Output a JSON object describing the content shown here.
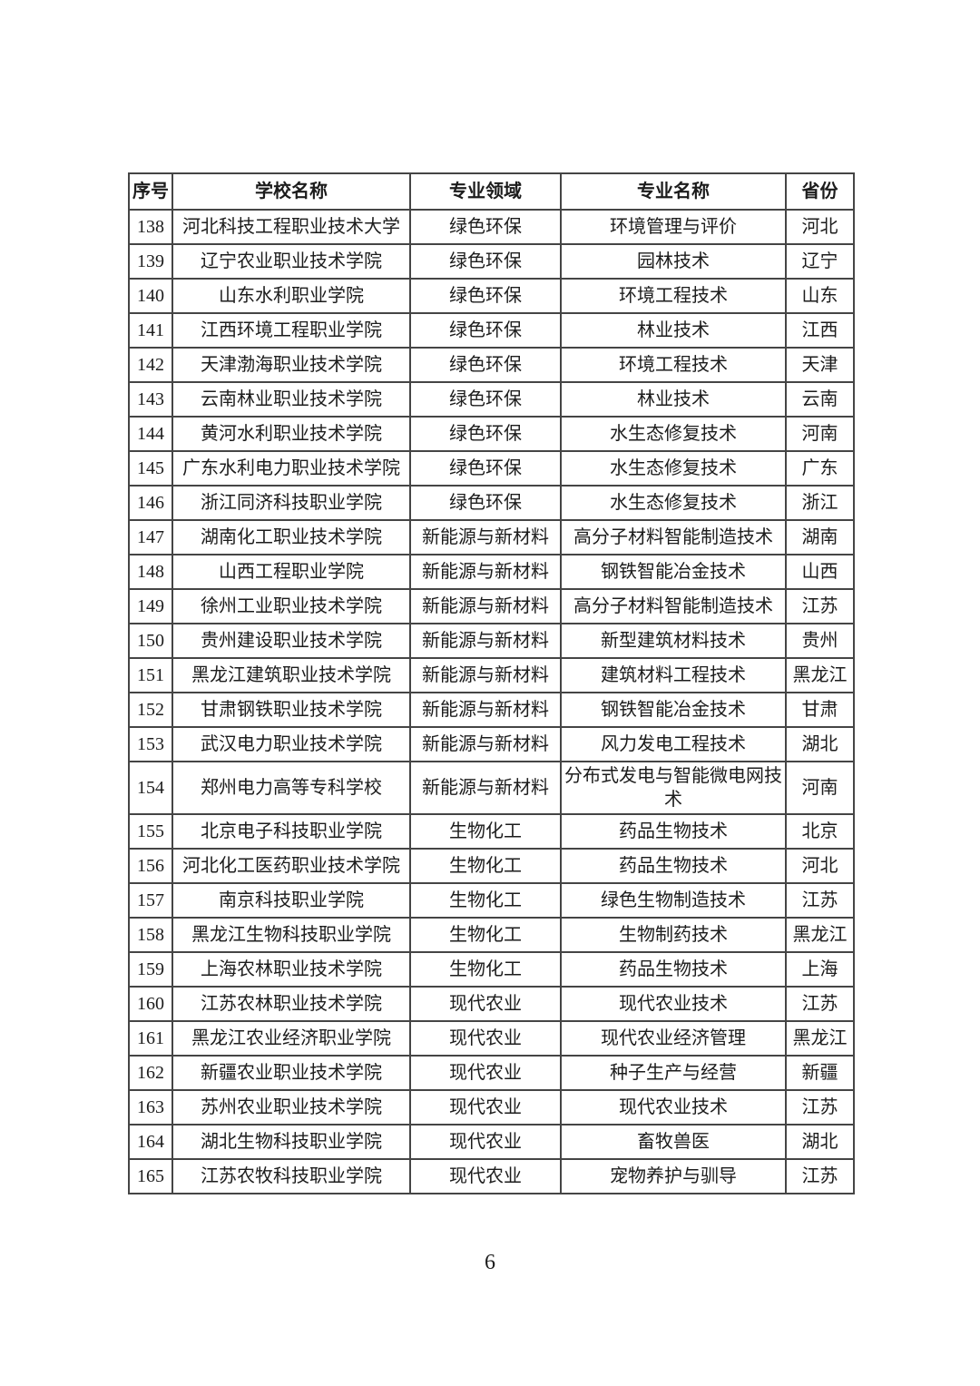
{
  "page": {
    "number": "6"
  },
  "table": {
    "headers": [
      "序号",
      "学校名称",
      "专业领域",
      "专业名称",
      "省份"
    ],
    "rows": [
      [
        "138",
        "河北科技工程职业技术大学",
        "绿色环保",
        "环境管理与评价",
        "河北"
      ],
      [
        "139",
        "辽宁农业职业技术学院",
        "绿色环保",
        "园林技术",
        "辽宁"
      ],
      [
        "140",
        "山东水利职业学院",
        "绿色环保",
        "环境工程技术",
        "山东"
      ],
      [
        "141",
        "江西环境工程职业学院",
        "绿色环保",
        "林业技术",
        "江西"
      ],
      [
        "142",
        "天津渤海职业技术学院",
        "绿色环保",
        "环境工程技术",
        "天津"
      ],
      [
        "143",
        "云南林业职业技术学院",
        "绿色环保",
        "林业技术",
        "云南"
      ],
      [
        "144",
        "黄河水利职业技术学院",
        "绿色环保",
        "水生态修复技术",
        "河南"
      ],
      [
        "145",
        "广东水利电力职业技术学院",
        "绿色环保",
        "水生态修复技术",
        "广东"
      ],
      [
        "146",
        "浙江同济科技职业学院",
        "绿色环保",
        "水生态修复技术",
        "浙江"
      ],
      [
        "147",
        "湖南化工职业技术学院",
        "新能源与新材料",
        "高分子材料智能制造技术",
        "湖南"
      ],
      [
        "148",
        "山西工程职业学院",
        "新能源与新材料",
        "钢铁智能冶金技术",
        "山西"
      ],
      [
        "149",
        "徐州工业职业技术学院",
        "新能源与新材料",
        "高分子材料智能制造技术",
        "江苏"
      ],
      [
        "150",
        "贵州建设职业技术学院",
        "新能源与新材料",
        "新型建筑材料技术",
        "贵州"
      ],
      [
        "151",
        "黑龙江建筑职业技术学院",
        "新能源与新材料",
        "建筑材料工程技术",
        "黑龙江"
      ],
      [
        "152",
        "甘肃钢铁职业技术学院",
        "新能源与新材料",
        "钢铁智能冶金技术",
        "甘肃"
      ],
      [
        "153",
        "武汉电力职业技术学院",
        "新能源与新材料",
        "风力发电工程技术",
        "湖北"
      ],
      [
        "154",
        "郑州电力高等专科学校",
        "新能源与新材料",
        "分布式发电与智能微电网技术",
        "河南"
      ],
      [
        "155",
        "北京电子科技职业学院",
        "生物化工",
        "药品生物技术",
        "北京"
      ],
      [
        "156",
        "河北化工医药职业技术学院",
        "生物化工",
        "药品生物技术",
        "河北"
      ],
      [
        "157",
        "南京科技职业学院",
        "生物化工",
        "绿色生物制造技术",
        "江苏"
      ],
      [
        "158",
        "黑龙江生物科技职业学院",
        "生物化工",
        "生物制药技术",
        "黑龙江"
      ],
      [
        "159",
        "上海农林职业技术学院",
        "生物化工",
        "药品生物技术",
        "上海"
      ],
      [
        "160",
        "江苏农林职业技术学院",
        "现代农业",
        "现代农业技术",
        "江苏"
      ],
      [
        "161",
        "黑龙江农业经济职业学院",
        "现代农业",
        "现代农业经济管理",
        "黑龙江"
      ],
      [
        "162",
        "新疆农业职业技术学院",
        "现代农业",
        "种子生产与经营",
        "新疆"
      ],
      [
        "163",
        "苏州农业职业技术学院",
        "现代农业",
        "现代农业技术",
        "江苏"
      ],
      [
        "164",
        "湖北生物科技职业学院",
        "现代农业",
        "畜牧兽医",
        "湖北"
      ],
      [
        "165",
        "江苏农牧科技职业学院",
        "现代农业",
        "宠物养护与驯导",
        "江苏"
      ]
    ]
  }
}
